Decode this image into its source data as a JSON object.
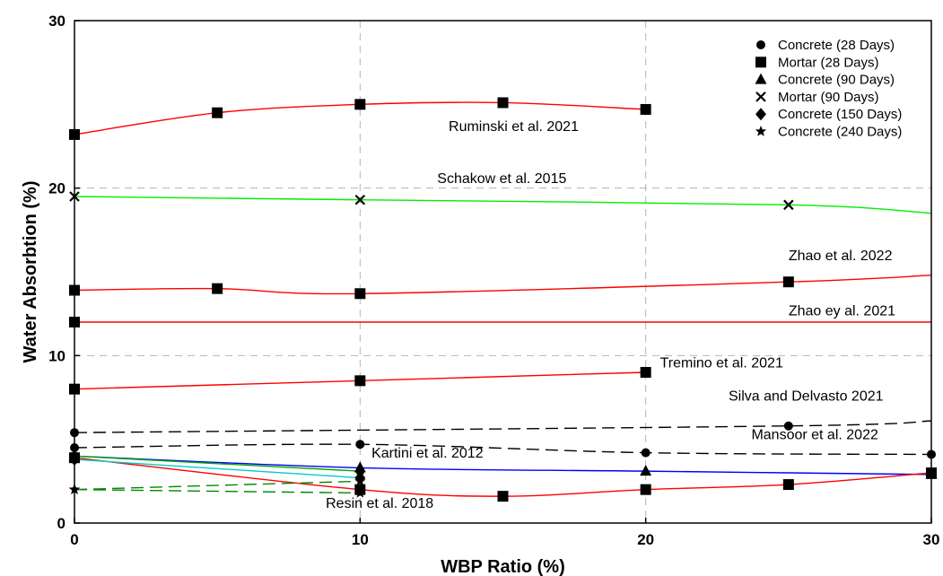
{
  "chart_data": {
    "type": "line",
    "xlabel": "WBP Ratio (%)",
    "ylabel": "Water Absorbtion (%)",
    "xlim": [
      0,
      30
    ],
    "ylim": [
      0,
      30
    ],
    "xticks": [
      "0",
      "10",
      "20",
      "30"
    ],
    "yticks": [
      "0",
      "10",
      "20",
      "30"
    ],
    "grid": "dashed-major",
    "legend_position": "top-right",
    "legend": [
      {
        "label": "Concrete (28 Days)",
        "marker": "circle"
      },
      {
        "label": "Mortar (28 Days)",
        "marker": "square"
      },
      {
        "label": "Concrete (90 Days)",
        "marker": "triangle"
      },
      {
        "label": "Mortar (90 Days)",
        "marker": "x"
      },
      {
        "label": "Concrete (150 Days)",
        "marker": "diamond"
      },
      {
        "label": "Concrete (240 Days)",
        "marker": "star"
      }
    ],
    "series": [
      {
        "color": "#ff0000",
        "dash": false,
        "marker": "square",
        "x": [
          0,
          5,
          10,
          15,
          20
        ],
        "y": [
          23.2,
          24.5,
          25.0,
          25.1,
          24.7
        ]
      },
      {
        "color": "#00ee00",
        "dash": false,
        "marker": "x",
        "x": [
          0,
          10,
          25,
          30
        ],
        "y": [
          19.5,
          19.3,
          19.0,
          18.5
        ],
        "marked": [
          0,
          1,
          2
        ]
      },
      {
        "color": "#ff0000",
        "dash": false,
        "marker": "square",
        "x": [
          0,
          5,
          10,
          25,
          30
        ],
        "y": [
          13.9,
          14.0,
          13.7,
          14.4,
          14.8
        ],
        "marked": [
          0,
          1,
          2,
          3
        ]
      },
      {
        "color": "#ff0000",
        "dash": false,
        "marker": "square",
        "x": [
          0,
          30
        ],
        "y": [
          12.0,
          12.0
        ],
        "marked": [
          0
        ]
      },
      {
        "color": "#ff0000",
        "dash": false,
        "marker": "square",
        "x": [
          0,
          10,
          20
        ],
        "y": [
          8.0,
          8.5,
          9.0
        ]
      },
      {
        "color": "#000000",
        "dash": true,
        "marker": "circle",
        "x": [
          0,
          25,
          30
        ],
        "y": [
          5.4,
          5.8,
          6.1
        ],
        "marked": [
          0,
          1
        ]
      },
      {
        "color": "#000000",
        "dash": true,
        "marker": "circle",
        "x": [
          0,
          10,
          20,
          30
        ],
        "y": [
          4.5,
          4.7,
          4.2,
          4.1
        ]
      },
      {
        "color": "#0000ff",
        "dash": false,
        "marker": "triangle",
        "x": [
          0,
          10,
          20,
          30
        ],
        "y": [
          4.0,
          3.3,
          3.1,
          2.9
        ]
      },
      {
        "color": "#ff0000",
        "dash": false,
        "marker": "square",
        "x": [
          0,
          10,
          15,
          20,
          25,
          30
        ],
        "y": [
          3.9,
          2.0,
          1.6,
          2.0,
          2.3,
          3.0
        ]
      },
      {
        "color": "#00cccc",
        "dash": false,
        "marker": "diamond",
        "x": [
          0,
          10
        ],
        "y": [
          3.8,
          2.7
        ]
      },
      {
        "color": "#00aa00",
        "dash": false,
        "marker": "circle",
        "x": [
          0,
          10
        ],
        "y": [
          4.0,
          3.1
        ]
      },
      {
        "color": "#008800",
        "dash": true,
        "marker": "star",
        "x": [
          0,
          10
        ],
        "y": [
          2.0,
          2.5
        ]
      },
      {
        "color": "#008800",
        "dash": true,
        "marker": "star",
        "x": [
          0,
          10
        ],
        "y": [
          2.0,
          1.8
        ]
      }
    ],
    "annotations": [
      {
        "text": "Ruminski et al. 2021",
        "x": 13.1,
        "y": 23.4
      },
      {
        "text": "Schakow et al. 2015",
        "x": 12.7,
        "y": 20.3
      },
      {
        "text": "Zhao et al. 2022",
        "x": 25.0,
        "y": 15.7
      },
      {
        "text": "Zhao ey al. 2021",
        "x": 25.0,
        "y": 12.4
      },
      {
        "text": "Tremino et al. 2021",
        "x": 20.5,
        "y": 9.3
      },
      {
        "text": "Silva and Delvasto 2021",
        "x": 22.9,
        "y": 7.3
      },
      {
        "text": "Mansoor et al. 2022",
        "x": 23.7,
        "y": 5.0
      },
      {
        "text": "Kartini et al. 2012",
        "x": 10.4,
        "y": 3.9
      },
      {
        "text": "Resin et al. 2018",
        "x": 8.8,
        "y": 0.9
      }
    ]
  }
}
